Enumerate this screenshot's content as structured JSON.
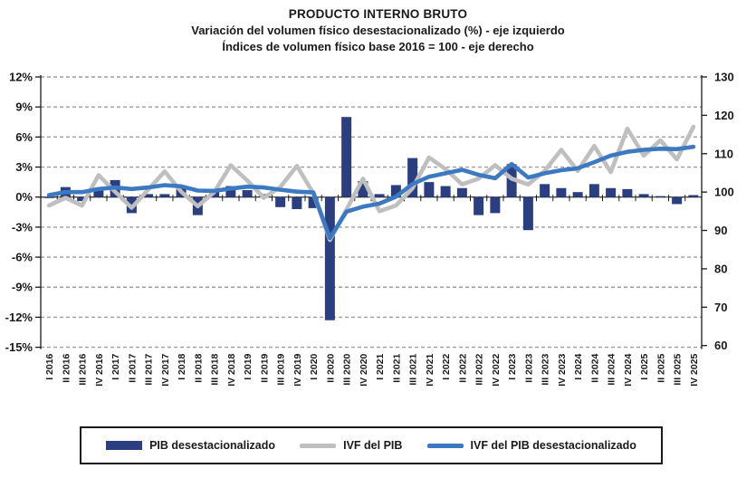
{
  "title": {
    "line1": "PRODUCTO INTERNO BRUTO",
    "line2": "Variación del volumen físico desestacionalizado (%) - eje izquierdo",
    "line3": "Índices de volumen físico base 2016 = 100 - eje derecho"
  },
  "legend": {
    "items": [
      {
        "label": "PIB desestacionalizado",
        "swatch": "bar",
        "color": "#2B3E80"
      },
      {
        "label": "IVF del PIB",
        "swatch": "line",
        "color": "#BFBFBF"
      },
      {
        "label": "IVF del PIB desestacionalizado",
        "swatch": "line",
        "color": "#3C79C3"
      }
    ]
  },
  "chart_data": {
    "type": "bar",
    "title": "PRODUCTO INTERNO BRUTO",
    "grid": "horizontal-dashed",
    "legend_position": "bottom",
    "categories": [
      "I 2016",
      "II 2016",
      "III 2016",
      "IV 2016",
      "I 2017",
      "II 2017",
      "III 2017",
      "IV 2017",
      "I 2018",
      "II 2018",
      "III 2018",
      "IV 2018",
      "I 2019",
      "II 2019",
      "III 2019",
      "IV 2019",
      "I 2020",
      "II 2020",
      "III 2020",
      "IV 2020",
      "I 2021",
      "II 2021",
      "III 2021",
      "IV 2021",
      "I 2022",
      "II 2022",
      "III 2022",
      "IV 2022",
      "I 2023",
      "II 2023",
      "III 2023",
      "IV 2023",
      "I 2024",
      "II 2024",
      "III 2024",
      "IV 2024",
      "I 2025",
      "II 2025",
      "III 2025",
      "IV 2025"
    ],
    "left_axis": {
      "unit": "%",
      "min": -15,
      "max": 12,
      "step": 3,
      "tick_labels": [
        "12%",
        "9%",
        "6%",
        "3%",
        "0%",
        "-3%",
        "-6%",
        "-9%",
        "-12%",
        "-15%"
      ]
    },
    "right_axis": {
      "min": 60,
      "max": 130,
      "step": 10,
      "tick_labels": [
        "130",
        "120",
        "110",
        "100",
        "90",
        "80",
        "70",
        "60"
      ]
    },
    "series": [
      {
        "name": "PIB desestacionalizado",
        "type": "bar",
        "axis": "left",
        "color": "#2B3E80",
        "values": [
          -0.1,
          1.0,
          -0.4,
          0.9,
          1.7,
          -1.6,
          0.3,
          0.3,
          1.1,
          -1.8,
          0.8,
          1.1,
          0.7,
          0.3,
          -1.0,
          -1.2,
          -1.1,
          -12.3,
          8.0,
          1.6,
          0.3,
          1.2,
          3.9,
          1.5,
          1.1,
          0.9,
          -1.8,
          -1.6,
          3.3,
          -3.3,
          1.3,
          0.9,
          0.5,
          1.3,
          0.9,
          0.8,
          0.3,
          0.1,
          -0.7,
          0.2
        ]
      },
      {
        "name": "IVF del PIB",
        "type": "line",
        "axis": "right",
        "color": "#BFBFBF",
        "values": [
          96.5,
          98.5,
          96.5,
          104.4,
          100.1,
          95.9,
          100.6,
          105.4,
          100.1,
          96.3,
          100.0,
          107.0,
          103.0,
          98.5,
          101.3,
          106.8,
          99.7,
          87.5,
          95.4,
          103.5,
          95.0,
          96.5,
          101.0,
          109.0,
          106.0,
          102.0,
          103.5,
          107.0,
          103.5,
          102.0,
          105.5,
          111.0,
          105.5,
          112.0,
          105.2,
          116.5,
          109.5,
          113.5,
          108.5,
          117.0
        ]
      },
      {
        "name": "IVF del PIB desestacionalizado",
        "type": "line",
        "axis": "right",
        "color": "#3C79C3",
        "values": [
          99.2,
          100.0,
          100.0,
          100.8,
          101.2,
          100.8,
          101.2,
          101.8,
          101.5,
          100.4,
          100.3,
          100.9,
          101.4,
          101.2,
          100.6,
          100.1,
          99.9,
          88.0,
          94.9,
          96.2,
          97.0,
          98.8,
          102.1,
          104.0,
          104.9,
          105.8,
          104.5,
          103.6,
          107.3,
          103.8,
          104.9,
          105.7,
          106.2,
          107.8,
          109.5,
          110.5,
          111.0,
          111.3,
          111.2,
          111.8
        ]
      }
    ]
  },
  "colors": {
    "bar": "#2B3E80",
    "line_gray": "#BFBFBF",
    "line_blue": "#3C79C3",
    "grid": "#9E9E9E",
    "axis": "#1a1a1a",
    "text": "#1a1a1a"
  }
}
